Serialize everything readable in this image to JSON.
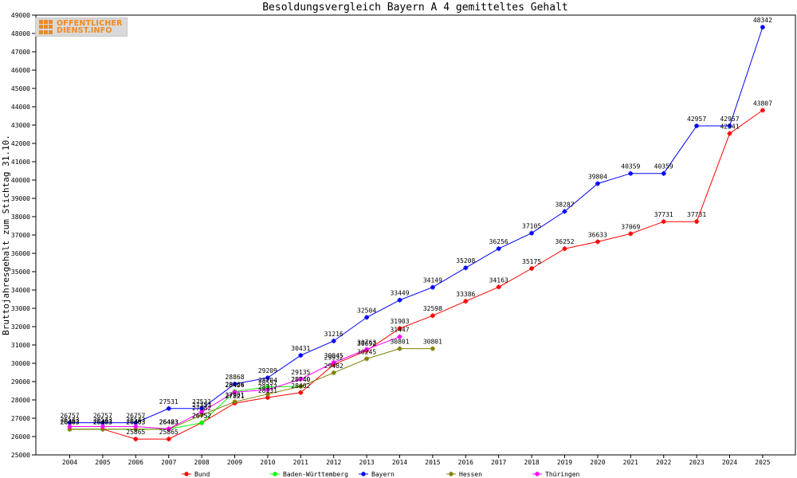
{
  "logo": {
    "line1": "OFFENTLICHER",
    "line2": "DIENST.INFO"
  },
  "chart_data": {
    "type": "line",
    "title": "Besoldungsvergleich Bayern A 4 gemitteltes Gehalt",
    "xlabel": "",
    "ylabel": "Bruttojahresgehalt zum Stichtag 31.10.",
    "ylim": [
      25000,
      49000
    ],
    "yticks": [
      25000,
      26000,
      27000,
      28000,
      29000,
      30000,
      31000,
      32000,
      33000,
      34000,
      35000,
      36000,
      37000,
      38000,
      39000,
      40000,
      41000,
      42000,
      43000,
      44000,
      45000,
      46000,
      47000,
      48000,
      49000
    ],
    "categories": [
      "2004",
      "2005",
      "2006",
      "2007",
      "2008",
      "2009",
      "2010",
      "2011",
      "2012",
      "2013",
      "2014",
      "2015",
      "2016",
      "2017",
      "2018",
      "2019",
      "2020",
      "2021",
      "2022",
      "2023",
      "2024",
      "2025"
    ],
    "grid": false,
    "legend_position": "bottom",
    "series": [
      {
        "name": "Bund",
        "color": "#ff0000",
        "values": [
          26403,
          26403,
          25865,
          25865,
          26752,
          27821,
          28131,
          28402,
          29932,
          30692,
          31903,
          32598,
          33386,
          34163,
          35175,
          36252,
          36633,
          37069,
          37731,
          37731,
          42541,
          43807
        ]
      },
      {
        "name": "Baden-Württemberg",
        "color": "#00ff00",
        "values": [
          26403,
          26403,
          26403,
          26403,
          26752,
          28464,
          28704,
          28740,
          null,
          null,
          null,
          null,
          null,
          null,
          null,
          null,
          null,
          null,
          null,
          null,
          null,
          null
        ]
      },
      {
        "name": "Bayern",
        "color": "#0000ff",
        "values": [
          26757,
          26757,
          26757,
          27531,
          27531,
          28868,
          29209,
          30431,
          31216,
          32504,
          33449,
          34149,
          35208,
          36256,
          37105,
          38287,
          39804,
          40359,
          40359,
          42957,
          42957,
          48342
        ]
      },
      {
        "name": "Hessen",
        "color": "#808000",
        "values": [
          26403,
          26403,
          26403,
          26403,
          27182,
          27901,
          28317,
          28740,
          29482,
          30245,
          30801,
          30801,
          null,
          null,
          null,
          null,
          null,
          null,
          null,
          null,
          null,
          null
        ]
      },
      {
        "name": "Thüringen",
        "color": "#ff00ff",
        "values": [
          26543,
          26543,
          26543,
          26423,
          27353,
          28426,
          28557,
          29135,
          30045,
          30763,
          31447,
          null,
          null,
          null,
          null,
          null,
          null,
          null,
          null,
          null,
          null,
          null
        ]
      }
    ]
  }
}
